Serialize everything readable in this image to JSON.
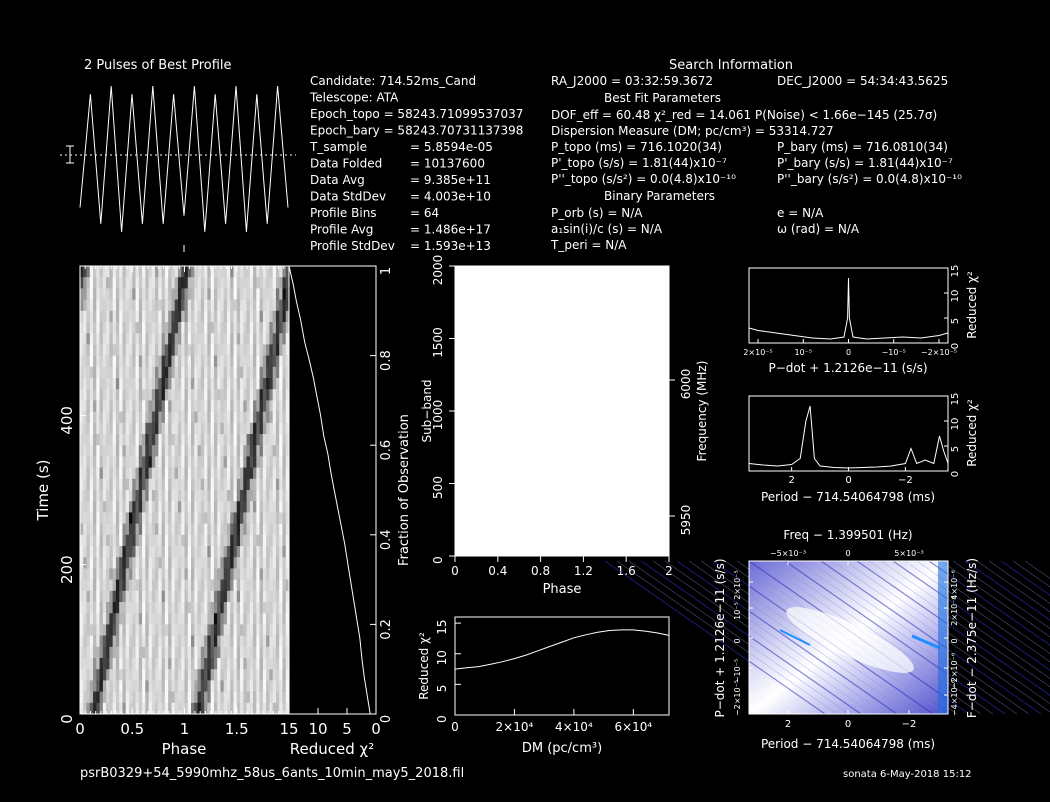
{
  "header": {
    "profile_title": "2 Pulses of Best Profile",
    "search_title": "Search Information",
    "binary_title": "Binary Parameters",
    "best_fit_title": "Best Fit Parameters"
  },
  "info_left": [
    [
      "Candidate:  714.52ms_Cand",
      ""
    ],
    [
      "Telescope:  ATA",
      ""
    ],
    [
      "Epoch_topo = 58243.71099537037",
      ""
    ],
    [
      "Epoch_bary = 58243.70731137398",
      ""
    ],
    [
      "T_sample",
      "=  5.8594e-05"
    ],
    [
      "Data Folded",
      "=  10137600"
    ],
    [
      "Data Avg",
      "=  9.385e+11"
    ],
    [
      "Data StdDev",
      "=  4.003e+10"
    ],
    [
      "Profile Bins",
      "=  64"
    ],
    [
      "Profile Avg",
      "=  1.486e+17"
    ],
    [
      "Profile StdDev",
      "=  1.593e+13"
    ]
  ],
  "search_info": {
    "ra": "RA_J2000 = 03:32:59.3672",
    "dec": "DEC_J2000 = 54:34:43.5625",
    "dof": "DOF_eff = 60.48  χ²_red = 14.061  P(Noise) < 1.66e−145  (25.7σ)",
    "dm": "Dispersion Measure (DM; pc/cm³) = 53314.727",
    "p_topo": "P_topo (ms) =  716.1020(34)",
    "p_bary": "P_bary (ms) =  716.0810(34)",
    "pd_topo": "P'_topo (s/s) =  1.81(44)x10⁻⁷",
    "pd_bary": "P'_bary (s/s) =  1.81(44)x10⁻⁷",
    "pdd_topo": "P''_topo (s/s²) = 0.0(4.8)x10⁻¹⁰",
    "pdd_bary": "P''_bary (s/s²) = 0.0(4.8)x10⁻¹⁰",
    "p_orb": "P_orb (s) = N/A",
    "e": "e = N/A",
    "a1": "a₁sin(i)/c (s) = N/A",
    "omega": "ω (rad) = N/A",
    "t_peri": "T_peri = N/A"
  },
  "footer": {
    "filename": "psrB0329+54_5990mhz_58us_6ants_10min_may5_2018.fil",
    "stamp": "sonata   6-May-2018 15:12"
  },
  "chart_data": [
    {
      "type": "line",
      "title": "2 Pulses of Best Profile",
      "description_values": "sinusoidal profile with ~10 peaks across 2 pulses",
      "x": [
        0,
        0.1,
        0.2,
        0.3,
        0.4,
        0.5,
        0.6,
        0.7,
        0.8,
        0.9,
        1.0,
        1.1,
        1.2,
        1.3,
        1.4,
        1.5,
        1.6,
        1.7,
        1.8,
        1.9,
        2.0
      ],
      "y": [
        0.2,
        0.9,
        0.1,
        0.95,
        0.05,
        0.9,
        0.1,
        0.95,
        0.1,
        0.9,
        0.15,
        0.95,
        0.05,
        0.9,
        0.1,
        0.95,
        0.05,
        0.9,
        0.1,
        0.95,
        0.2
      ]
    },
    {
      "type": "heatmap",
      "xlabel": "Phase",
      "ylabel": "Time (s)",
      "xticks": [
        "0",
        "0.5",
        "1",
        "1.5"
      ],
      "yticks": [
        "0",
        "200",
        "400"
      ],
      "x_range": [
        0,
        2
      ],
      "y_range": [
        0,
        600
      ]
    },
    {
      "type": "line",
      "xlabel": "Reduced χ²",
      "ylabel": "Fraction of Observation",
      "xticks": [
        "15",
        "10",
        "5",
        "0"
      ],
      "yticks": [
        "0",
        "0.2",
        "0.4",
        "0.6",
        "0.8",
        "1"
      ],
      "x_range": [
        15,
        0
      ],
      "y_range": [
        0,
        1
      ],
      "x": [
        1.0,
        1.5,
        2.0,
        2.4,
        2.8,
        3.3,
        3.8,
        4.3,
        4.8,
        5.4,
        6.0,
        6.6,
        7.2,
        7.8,
        8.3,
        9.0,
        9.6,
        10.2,
        10.8,
        11.5,
        12.3,
        13.0,
        13.7,
        14.3,
        15.0
      ],
      "y": [
        0.0,
        0.04,
        0.08,
        0.12,
        0.17,
        0.21,
        0.25,
        0.29,
        0.33,
        0.38,
        0.42,
        0.46,
        0.5,
        0.54,
        0.58,
        0.62,
        0.67,
        0.71,
        0.75,
        0.79,
        0.83,
        0.88,
        0.92,
        0.96,
        1.0
      ]
    },
    {
      "type": "heatmap",
      "xlabel": "Phase",
      "ylabel": "Sub−band",
      "y2label": "Frequency (MHz)",
      "xticks": [
        "0",
        "0.4",
        "0.8",
        "1.2",
        "1.6",
        "2"
      ],
      "yticks": [
        "0",
        "500",
        "1000",
        "1500",
        "2000"
      ],
      "y2ticks": [
        "5950",
        "6000"
      ],
      "x_range": [
        0,
        2
      ],
      "y_range": [
        0,
        2000
      ]
    },
    {
      "type": "line",
      "xlabel": "DM (pc/cm³)",
      "ylabel": "Reduced χ²",
      "xticks": [
        "0",
        "2×10⁴",
        "4×10⁴",
        "6×10⁴"
      ],
      "yticks": [
        "0",
        "5",
        "10",
        "15"
      ],
      "x_range": [
        0,
        72000
      ],
      "y_range": [
        0,
        16
      ],
      "x": [
        0,
        4000,
        8000,
        12000,
        16000,
        20000,
        24000,
        28000,
        32000,
        36000,
        40000,
        44000,
        48000,
        52000,
        56000,
        60000,
        64000,
        68000,
        72000
      ],
      "y": [
        7.5,
        7.7,
        7.9,
        8.3,
        8.7,
        9.2,
        9.8,
        10.5,
        11.2,
        11.9,
        12.6,
        13.1,
        13.5,
        13.8,
        13.9,
        13.9,
        13.7,
        13.4,
        13.0
      ]
    },
    {
      "type": "line",
      "xlabel": "P−dot + 1.2126e−11 (s/s)",
      "ylabel": "Reduced χ²",
      "xticks": [
        "2×10⁻⁵",
        "10⁻⁵",
        "0",
        "−10⁻⁵",
        "−2×10⁻⁵"
      ],
      "yticks": [
        "0",
        "5",
        "10",
        "15"
      ],
      "x_range": [
        2.2e-05,
        -2.2e-05
      ],
      "y_range": [
        0,
        15
      ],
      "x": [
        2.2e-05,
        2e-05,
        1.6e-05,
        1.2e-05,
        8e-06,
        4e-06,
        1e-06,
        2e-07,
        0,
        -2e-07,
        -1e-06,
        -4e-06,
        -8e-06,
        -1.2e-05,
        -1.6e-05,
        -2e-05,
        -2.2e-05
      ],
      "y": [
        3,
        2.5,
        2,
        1.5,
        1,
        0.8,
        1.2,
        5,
        13,
        5,
        1.2,
        0.8,
        1,
        1.2,
        1,
        1.5,
        2
      ]
    },
    {
      "type": "line",
      "xlabel": "Period − 714.54064798 (ms)",
      "ylabel": "Reduced χ²",
      "xticks": [
        "2",
        "0",
        "−2"
      ],
      "yticks": [
        "0",
        "5",
        "10",
        "15"
      ],
      "x_range": [
        3.5,
        -3.5
      ],
      "y_range": [
        0,
        15
      ],
      "x": [
        3.5,
        3.0,
        2.5,
        2.0,
        1.7,
        1.5,
        1.35,
        1.2,
        1.0,
        0.5,
        0,
        -0.5,
        -1.0,
        -1.5,
        -2.0,
        -2.2,
        -2.4,
        -2.7,
        -3.0,
        -3.2,
        -3.35,
        -3.5
      ],
      "y": [
        1.5,
        1.2,
        1.0,
        1.3,
        2.5,
        10,
        13,
        2.5,
        1,
        0.7,
        0.6,
        0.7,
        0.8,
        1,
        1.5,
        4.5,
        1.5,
        2.2,
        1.5,
        7,
        4,
        1.5
      ]
    },
    {
      "type": "heatmap",
      "title": "Freq − 1.399501 (Hz)",
      "xlabel": "Period − 714.54064798 (ms)",
      "ylabel": "P−dot + 1.2126e−11 (s/s)",
      "y2label": "F−dot − 2.375e−11 (Hz/s)",
      "xticks": [
        "2",
        "0",
        "−2"
      ],
      "x2ticks": [
        "−5×10⁻³",
        "0",
        "5×10⁻³"
      ],
      "yticks": [
        "2×10⁻⁵",
        "10⁻⁵",
        "0",
        "−10⁻⁵",
        "−2×10⁻⁵"
      ],
      "y2ticks": [
        "−4×10⁻⁶",
        "−2×10⁻⁶",
        "0",
        "2×10⁻⁶",
        "4×10⁻⁶"
      ]
    }
  ]
}
